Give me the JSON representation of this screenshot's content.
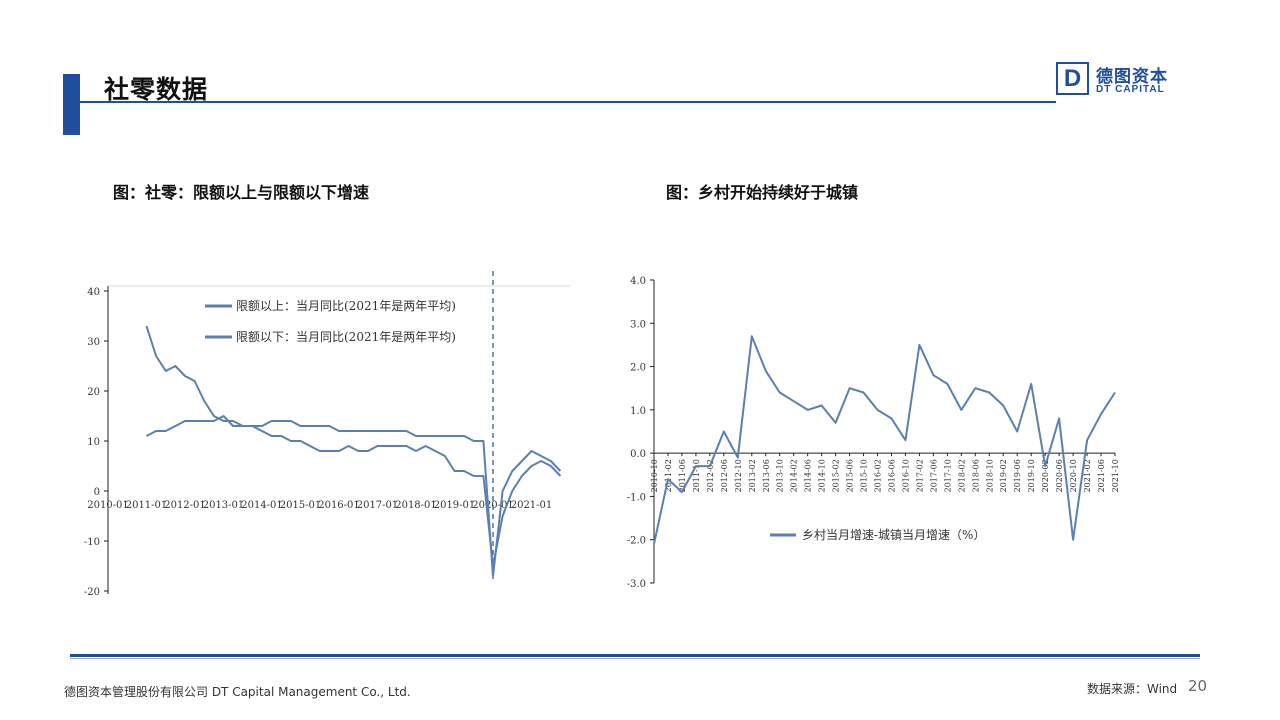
{
  "header": {
    "title": "社零数据"
  },
  "logo": {
    "mark": "D",
    "name_cn": "德图资本",
    "name_en": "DT CAPITAL"
  },
  "colors": {
    "brand": "#1f4f9a",
    "series": "#5b7fb0"
  },
  "footer": {
    "company": "德图资本管理股份有限公司 DT Capital Management Co., Ltd.",
    "source": "数据来源：Wind",
    "page": "20"
  },
  "chart_data": [
    {
      "type": "line",
      "title": "图：社零：限额以上与限额以下增速",
      "ylim": [
        -20,
        40
      ],
      "yticks": [
        "40",
        "30",
        "20",
        "10",
        "0",
        "-10",
        "-20"
      ],
      "xticks": [
        "2010-01",
        "2011-01",
        "2012-01",
        "2013-01",
        "2014-01",
        "2015-01",
        "2016-01",
        "2017-01",
        "2018-01",
        "2019-01",
        "2020-01",
        "2021-01"
      ],
      "grid": false,
      "legend_position": "top-center",
      "series": [
        {
          "name": "限额以上：当月同比(2021年是两年平均)",
          "x": [
            "2011-01",
            "2011-04",
            "2011-07",
            "2011-10",
            "2012-01",
            "2012-04",
            "2012-07",
            "2012-10",
            "2013-01",
            "2013-04",
            "2013-07",
            "2013-10",
            "2014-01",
            "2014-04",
            "2014-07",
            "2014-10",
            "2015-01",
            "2015-04",
            "2015-07",
            "2015-10",
            "2016-01",
            "2016-04",
            "2016-07",
            "2016-10",
            "2017-01",
            "2017-04",
            "2017-07",
            "2017-10",
            "2018-01",
            "2018-04",
            "2018-07",
            "2018-10",
            "2019-01",
            "2019-04",
            "2019-07",
            "2019-10",
            "2020-01",
            "2020-04",
            "2020-07",
            "2020-10",
            "2021-01",
            "2021-04",
            "2021-07",
            "2021-10"
          ],
          "values": [
            33,
            27,
            24,
            25,
            23,
            22,
            18,
            15,
            14,
            14,
            13,
            13,
            12,
            11,
            11,
            10,
            10,
            9,
            8,
            8,
            8,
            9,
            8,
            8,
            9,
            9,
            9,
            9,
            8,
            9,
            8,
            7,
            4,
            4,
            3,
            3,
            -15,
            -5,
            0,
            3,
            5,
            6,
            5,
            3
          ]
        },
        {
          "name": "限额以下：当月同比(2021年是两年平均)",
          "x": [
            "2011-01",
            "2011-04",
            "2011-07",
            "2011-10",
            "2012-01",
            "2012-04",
            "2012-07",
            "2012-10",
            "2013-01",
            "2013-04",
            "2013-07",
            "2013-10",
            "2014-01",
            "2014-04",
            "2014-07",
            "2014-10",
            "2015-01",
            "2015-04",
            "2015-07",
            "2015-10",
            "2016-01",
            "2016-04",
            "2016-07",
            "2016-10",
            "2017-01",
            "2017-04",
            "2017-07",
            "2017-10",
            "2018-01",
            "2018-04",
            "2018-07",
            "2018-10",
            "2019-01",
            "2019-04",
            "2019-07",
            "2019-10",
            "2020-01",
            "2020-04",
            "2020-07",
            "2020-10",
            "2021-01",
            "2021-04",
            "2021-07",
            "2021-10"
          ],
          "values": [
            11,
            12,
            12,
            13,
            14,
            14,
            14,
            14,
            15,
            13,
            13,
            13,
            13,
            14,
            14,
            14,
            13,
            13,
            13,
            13,
            12,
            12,
            12,
            12,
            12,
            12,
            12,
            12,
            11,
            11,
            11,
            11,
            11,
            11,
            10,
            10,
            -17,
            0,
            4,
            6,
            8,
            7,
            6,
            4
          ]
        }
      ]
    },
    {
      "type": "line",
      "title": "图：乡村开始持续好于城镇",
      "ylim": [
        -3,
        4
      ],
      "yticks": [
        "4.0",
        "3.0",
        "2.0",
        "1.0",
        "0.0",
        "-1.0",
        "-2.0",
        "-3.0"
      ],
      "xticks": [
        "2010-10",
        "2011-02",
        "2011-06",
        "2011-10",
        "2012-02",
        "2012-06",
        "2012-10",
        "2013-02",
        "2013-06",
        "2013-10",
        "2014-02",
        "2014-06",
        "2014-10",
        "2015-02",
        "2015-06",
        "2015-10",
        "2016-02",
        "2016-06",
        "2016-10",
        "2017-02",
        "2017-06",
        "2017-10",
        "2018-02",
        "2018-06",
        "2018-10",
        "2019-02",
        "2019-06",
        "2019-10",
        "2020-02",
        "2020-06",
        "2020-10",
        "2021-02",
        "2021-06",
        "2021-10"
      ],
      "grid": false,
      "legend_position": "bottom-center",
      "series": [
        {
          "name": "乡村当月增速-城镇当月增速（%）",
          "x": [
            "2010-10",
            "2011-02",
            "2011-06",
            "2011-10",
            "2012-02",
            "2012-06",
            "2012-10",
            "2013-02",
            "2013-06",
            "2013-10",
            "2014-02",
            "2014-06",
            "2014-10",
            "2015-02",
            "2015-06",
            "2015-10",
            "2016-02",
            "2016-06",
            "2016-10",
            "2017-02",
            "2017-06",
            "2017-10",
            "2018-02",
            "2018-06",
            "2018-10",
            "2019-02",
            "2019-06",
            "2019-10",
            "2020-02",
            "2020-06",
            "2020-10",
            "2021-02",
            "2021-06",
            "2021-10"
          ],
          "values": [
            -2.1,
            -0.6,
            -0.9,
            -0.3,
            -0.3,
            0.5,
            -0.1,
            2.7,
            1.9,
            1.4,
            1.2,
            1.0,
            1.1,
            0.7,
            1.5,
            1.4,
            1.0,
            0.8,
            0.3,
            2.5,
            1.8,
            1.6,
            1.0,
            1.5,
            1.4,
            1.1,
            0.5,
            1.6,
            -0.3,
            0.8,
            -2.0,
            0.3,
            0.9,
            1.4
          ]
        }
      ]
    }
  ]
}
